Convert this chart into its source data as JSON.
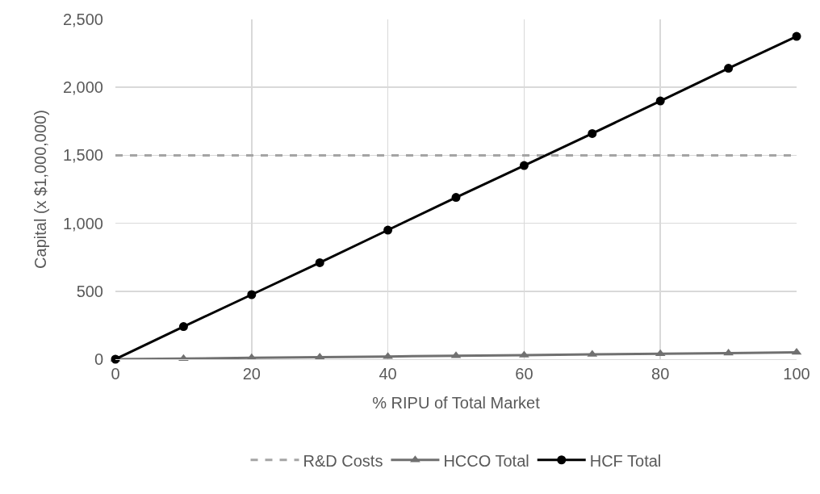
{
  "chart_data": {
    "type": "line",
    "xlabel": "% RIPU of Total Market",
    "ylabel": "Capital (x $1,000,000)",
    "x": [
      0,
      10,
      20,
      30,
      40,
      50,
      60,
      70,
      80,
      90,
      100
    ],
    "series": [
      {
        "name": "R&D Costs",
        "color": "#a5a5a5",
        "line_style": "dashed",
        "marker": "none",
        "x": [
          0,
          100
        ],
        "values": [
          1500,
          1500
        ]
      },
      {
        "name": "HCCO Total",
        "color": "#707070",
        "line_style": "solid",
        "marker": "triangle",
        "values": [
          0,
          5,
          10,
          15,
          20,
          25,
          30,
          35,
          40,
          45,
          50
        ]
      },
      {
        "name": "HCF Total",
        "color": "#000000",
        "line_style": "solid",
        "marker": "circle",
        "values": [
          0,
          240,
          475,
          710,
          950,
          1190,
          1425,
          1660,
          1900,
          2140,
          2375
        ]
      }
    ],
    "xlim": [
      0,
      100
    ],
    "xticks": [
      0,
      20,
      40,
      60,
      80,
      100
    ],
    "ylim": [
      0,
      2500
    ],
    "yticks": [
      {
        "value": 0,
        "label": "0"
      },
      {
        "value": 500,
        "label": "500"
      },
      {
        "value": 1000,
        "label": "1,000"
      },
      {
        "value": 1500,
        "label": "1,500"
      },
      {
        "value": 2000,
        "label": "2,000"
      },
      {
        "value": 2500,
        "label": "2,500"
      }
    ],
    "grid": true,
    "legend": "bottom"
  }
}
